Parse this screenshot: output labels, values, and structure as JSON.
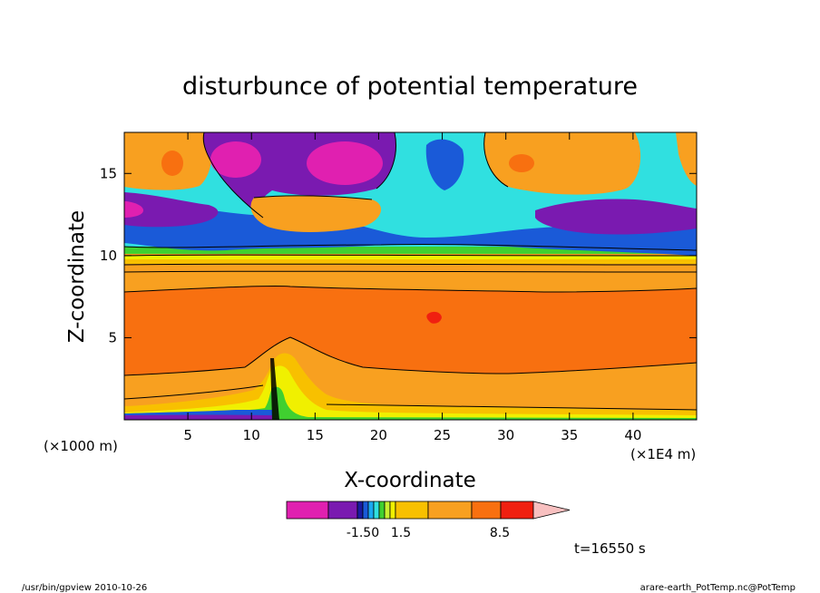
{
  "chart_data": {
    "type": "heatmap",
    "title": "disturbunce of potential temperature",
    "xlabel": "X-coordinate",
    "ylabel": "Z-coordinate",
    "x_unit_label": "(×1E4 m)",
    "y_unit_label": "(×1000 m)",
    "xlim": [
      0,
      45
    ],
    "ylim": [
      0,
      17.5
    ],
    "x_ticks": [
      5,
      10,
      15,
      20,
      25,
      30,
      35,
      40
    ],
    "y_ticks": [
      5,
      10,
      15
    ],
    "time_label": "t=16550 s",
    "colorbar": {
      "colors": [
        "#e020b0",
        "#7a1ab0",
        "#1a1aa0",
        "#1a5ad8",
        "#1aa8f0",
        "#30e0e0",
        "#40d030",
        "#c8f030",
        "#f0f000",
        "#f8c000",
        "#f8a020",
        "#f87010",
        "#f02010",
        "#f88078",
        "#f8c0c0"
      ],
      "tick_labels": [
        {
          "value": -1.5,
          "label": "-1.50"
        },
        {
          "value": 1.5,
          "label": "1.5"
        },
        {
          "value": 8.5,
          "label": "8.5"
        }
      ]
    }
  },
  "footer": {
    "program": "/usr/bin/gpview  2010-10-26",
    "source": "arare-earth_PotTemp.nc@PotTemp"
  }
}
